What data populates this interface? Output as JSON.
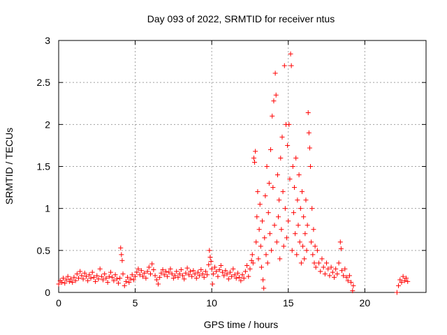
{
  "chart_data": {
    "type": "scatter",
    "title": "Day 093 of 2022, SRMTID for receiver ntus",
    "xlabel": "GPS time / hours",
    "ylabel": "SRMTID / TECUs",
    "xlim": [
      0,
      24
    ],
    "ylim": [
      0,
      3
    ],
    "xticks": [
      0,
      5,
      10,
      15,
      20
    ],
    "xtick_labels": [
      "0",
      "5",
      "10",
      "15",
      "20"
    ],
    "yticks": [
      0,
      0.5,
      1,
      1.5,
      2,
      2.5,
      3
    ],
    "ytick_labels": [
      "0",
      "0.5",
      "1",
      "1.5",
      "2",
      "2.5",
      "3"
    ],
    "grid": true,
    "marker": "+",
    "color": "#ff0000",
    "series": [
      {
        "name": "ntus",
        "points": [
          [
            0.0,
            0.1
          ],
          [
            0.1,
            0.14
          ],
          [
            0.2,
            0.12
          ],
          [
            0.3,
            0.17
          ],
          [
            0.4,
            0.11
          ],
          [
            0.5,
            0.15
          ],
          [
            0.6,
            0.19
          ],
          [
            0.7,
            0.13
          ],
          [
            0.8,
            0.16
          ],
          [
            0.9,
            0.12
          ],
          [
            1.0,
            0.18
          ],
          [
            1.1,
            0.14
          ],
          [
            1.2,
            0.22
          ],
          [
            1.3,
            0.17
          ],
          [
            1.4,
            0.25
          ],
          [
            1.5,
            0.2
          ],
          [
            1.6,
            0.16
          ],
          [
            1.7,
            0.23
          ],
          [
            1.8,
            0.19
          ],
          [
            1.9,
            0.14
          ],
          [
            2.0,
            0.21
          ],
          [
            2.1,
            0.17
          ],
          [
            2.2,
            0.24
          ],
          [
            2.3,
            0.18
          ],
          [
            2.4,
            0.13
          ],
          [
            2.5,
            0.2
          ],
          [
            2.6,
            0.16
          ],
          [
            2.7,
            0.28
          ],
          [
            2.8,
            0.19
          ],
          [
            2.9,
            0.15
          ],
          [
            3.0,
            0.22
          ],
          [
            3.1,
            0.17
          ],
          [
            3.2,
            0.12
          ],
          [
            3.3,
            0.19
          ],
          [
            3.4,
            0.24
          ],
          [
            3.5,
            0.18
          ],
          [
            3.6,
            0.14
          ],
          [
            3.7,
            0.21
          ],
          [
            3.8,
            0.16
          ],
          [
            3.9,
            0.11
          ],
          [
            4.0,
            0.17
          ],
          [
            4.05,
            0.53
          ],
          [
            4.1,
            0.45
          ],
          [
            4.15,
            0.38
          ],
          [
            4.2,
            0.22
          ],
          [
            4.3,
            0.08
          ],
          [
            4.4,
            0.13
          ],
          [
            4.5,
            0.18
          ],
          [
            4.6,
            0.12
          ],
          [
            4.7,
            0.16
          ],
          [
            4.8,
            0.21
          ],
          [
            4.9,
            0.15
          ],
          [
            5.0,
            0.19
          ],
          [
            5.1,
            0.24
          ],
          [
            5.2,
            0.28
          ],
          [
            5.3,
            0.21
          ],
          [
            5.4,
            0.26
          ],
          [
            5.5,
            0.19
          ],
          [
            5.6,
            0.23
          ],
          [
            5.7,
            0.17
          ],
          [
            5.8,
            0.25
          ],
          [
            5.9,
            0.3
          ],
          [
            6.0,
            0.22
          ],
          [
            6.1,
            0.34
          ],
          [
            6.2,
            0.27
          ],
          [
            6.3,
            0.2
          ],
          [
            6.4,
            0.15
          ],
          [
            6.5,
            0.1
          ],
          [
            6.6,
            0.18
          ],
          [
            6.7,
            0.23
          ],
          [
            6.8,
            0.27
          ],
          [
            6.9,
            0.21
          ],
          [
            7.0,
            0.25
          ],
          [
            7.1,
            0.19
          ],
          [
            7.2,
            0.24
          ],
          [
            7.3,
            0.28
          ],
          [
            7.4,
            0.22
          ],
          [
            7.5,
            0.17
          ],
          [
            7.6,
            0.2
          ],
          [
            7.7,
            0.25
          ],
          [
            7.8,
            0.18
          ],
          [
            7.9,
            0.22
          ],
          [
            8.0,
            0.27
          ],
          [
            8.1,
            0.2
          ],
          [
            8.2,
            0.16
          ],
          [
            8.3,
            0.23
          ],
          [
            8.4,
            0.29
          ],
          [
            8.5,
            0.21
          ],
          [
            8.6,
            0.25
          ],
          [
            8.7,
            0.19
          ],
          [
            8.8,
            0.26
          ],
          [
            8.9,
            0.22
          ],
          [
            9.0,
            0.17
          ],
          [
            9.1,
            0.24
          ],
          [
            9.2,
            0.2
          ],
          [
            9.3,
            0.27
          ],
          [
            9.4,
            0.22
          ],
          [
            9.5,
            0.18
          ],
          [
            9.6,
            0.25
          ],
          [
            9.7,
            0.21
          ],
          [
            9.8,
            0.33
          ],
          [
            9.85,
            0.5
          ],
          [
            9.9,
            0.42
          ],
          [
            9.95,
            0.37
          ],
          [
            10.0,
            0.28
          ],
          [
            10.05,
            0.1
          ],
          [
            10.1,
            0.22
          ],
          [
            10.2,
            0.3
          ],
          [
            10.3,
            0.25
          ],
          [
            10.4,
            0.19
          ],
          [
            10.5,
            0.27
          ],
          [
            10.6,
            0.32
          ],
          [
            10.7,
            0.24
          ],
          [
            10.8,
            0.2
          ],
          [
            10.9,
            0.26
          ],
          [
            11.0,
            0.22
          ],
          [
            11.1,
            0.16
          ],
          [
            11.2,
            0.24
          ],
          [
            11.3,
            0.19
          ],
          [
            11.4,
            0.28
          ],
          [
            11.5,
            0.21
          ],
          [
            11.6,
            0.17
          ],
          [
            11.7,
            0.23
          ],
          [
            11.8,
            0.18
          ],
          [
            11.9,
            0.14
          ],
          [
            12.0,
            0.21
          ],
          [
            12.1,
            0.17
          ],
          [
            12.2,
            0.25
          ],
          [
            12.3,
            0.32
          ],
          [
            12.4,
            0.19
          ],
          [
            12.5,
            0.28
          ],
          [
            12.6,
            0.38
          ],
          [
            12.65,
            0.45
          ],
          [
            12.7,
            0.35
          ],
          [
            12.75,
            1.6
          ],
          [
            12.8,
            1.55
          ],
          [
            12.85,
            1.68
          ],
          [
            12.9,
            0.6
          ],
          [
            12.95,
            0.9
          ],
          [
            13.0,
            1.2
          ],
          [
            13.05,
            0.4
          ],
          [
            13.1,
            0.75
          ],
          [
            13.15,
            1.05
          ],
          [
            13.2,
            0.55
          ],
          [
            13.25,
            0.3
          ],
          [
            13.3,
            0.85
          ],
          [
            13.35,
            0.15
          ],
          [
            13.4,
            0.05
          ],
          [
            13.45,
            0.65
          ],
          [
            13.5,
            1.15
          ],
          [
            13.55,
            0.45
          ],
          [
            13.6,
            1.5
          ],
          [
            13.65,
            0.35
          ],
          [
            13.7,
            0.95
          ],
          [
            13.75,
            1.3
          ],
          [
            13.8,
            0.7
          ],
          [
            13.85,
            1.7
          ],
          [
            13.9,
            0.5
          ],
          [
            13.95,
            2.1
          ],
          [
            14.0,
            1.25
          ],
          [
            14.05,
            2.28
          ],
          [
            14.1,
            0.8
          ],
          [
            14.15,
            2.61
          ],
          [
            14.2,
            2.35
          ],
          [
            14.25,
            0.6
          ],
          [
            14.3,
            1.4
          ],
          [
            14.35,
            0.9
          ],
          [
            14.4,
            1.1
          ],
          [
            14.45,
            0.4
          ],
          [
            14.5,
            1.6
          ],
          [
            14.55,
            0.75
          ],
          [
            14.6,
            1.85
          ],
          [
            14.65,
            1.2
          ],
          [
            14.7,
            0.55
          ],
          [
            14.75,
            2.7
          ],
          [
            14.8,
            1.0
          ],
          [
            14.85,
            2.0
          ],
          [
            14.9,
            0.65
          ],
          [
            14.95,
            1.75
          ],
          [
            15.0,
            0.85
          ],
          [
            15.05,
            2.0
          ],
          [
            15.1,
            1.35
          ],
          [
            15.15,
            2.84
          ],
          [
            15.2,
            2.7
          ],
          [
            15.25,
            0.5
          ],
          [
            15.3,
            1.5
          ],
          [
            15.35,
            0.95
          ],
          [
            15.4,
            1.25
          ],
          [
            15.45,
            0.7
          ],
          [
            15.5,
            1.6
          ],
          [
            15.55,
            0.45
          ],
          [
            15.6,
            1.1
          ],
          [
            15.65,
            0.8
          ],
          [
            15.7,
            1.4
          ],
          [
            15.75,
            0.6
          ],
          [
            15.8,
            1.0
          ],
          [
            15.85,
            0.35
          ],
          [
            15.9,
            1.2
          ],
          [
            15.95,
            0.55
          ],
          [
            16.0,
            0.9
          ],
          [
            16.05,
            0.4
          ],
          [
            16.1,
            0.7
          ],
          [
            16.15,
            1.1
          ],
          [
            16.2,
            0.5
          ],
          [
            16.25,
            0.8
          ],
          [
            16.3,
            2.14
          ],
          [
            16.35,
            1.9
          ],
          [
            16.4,
            1.72
          ],
          [
            16.45,
            1.5
          ],
          [
            16.5,
            0.6
          ],
          [
            16.55,
            1.0
          ],
          [
            16.6,
            0.45
          ],
          [
            16.65,
            0.75
          ],
          [
            16.7,
            0.35
          ],
          [
            16.75,
            0.55
          ],
          [
            16.8,
            0.3
          ],
          [
            16.9,
            0.5
          ],
          [
            17.0,
            0.35
          ],
          [
            17.1,
            0.25
          ],
          [
            17.2,
            0.4
          ],
          [
            17.3,
            0.3
          ],
          [
            17.4,
            0.22
          ],
          [
            17.5,
            0.35
          ],
          [
            17.6,
            0.28
          ],
          [
            17.7,
            0.2
          ],
          [
            17.8,
            0.3
          ],
          [
            17.9,
            0.24
          ],
          [
            18.0,
            0.18
          ],
          [
            18.1,
            0.28
          ],
          [
            18.2,
            0.22
          ],
          [
            18.3,
            0.35
          ],
          [
            18.4,
            0.6
          ],
          [
            18.45,
            0.52
          ],
          [
            18.5,
            0.26
          ],
          [
            18.6,
            0.2
          ],
          [
            18.7,
            0.28
          ],
          [
            18.8,
            0.18
          ],
          [
            18.9,
            0.14
          ],
          [
            19.0,
            0.2
          ],
          [
            19.1,
            0.12
          ],
          [
            19.2,
            0.02
          ],
          [
            19.25,
            0.08
          ],
          [
            22.1,
            0.0
          ],
          [
            22.2,
            0.08
          ],
          [
            22.3,
            0.15
          ],
          [
            22.4,
            0.12
          ],
          [
            22.5,
            0.19
          ],
          [
            22.6,
            0.14
          ],
          [
            22.7,
            0.17
          ],
          [
            22.8,
            0.13
          ]
        ]
      }
    ]
  }
}
